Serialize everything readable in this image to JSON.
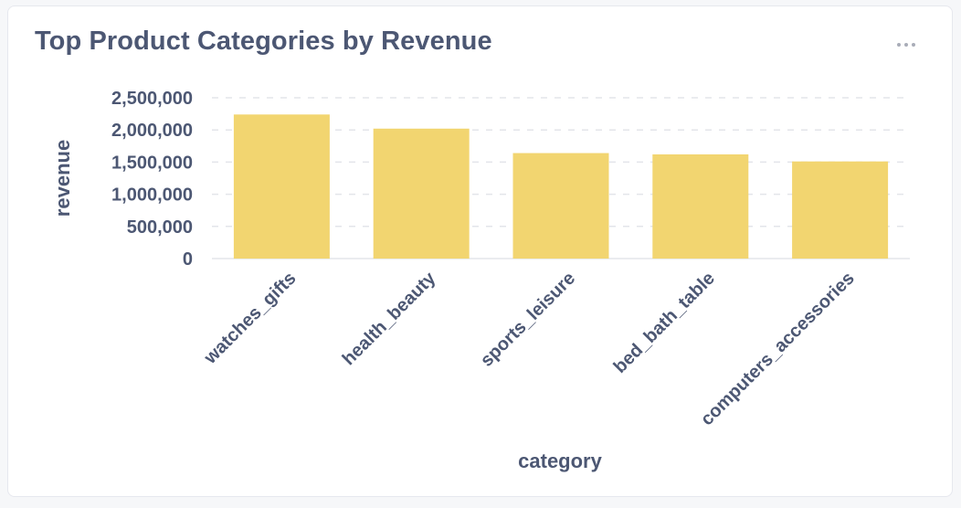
{
  "card": {
    "title": "Top Product Categories by Revenue",
    "menu_icon": "more-horizontal-icon"
  },
  "chart_data": {
    "type": "bar",
    "categories": [
      "watches_gifts",
      "health_beauty",
      "sports_leisure",
      "bed_bath_table",
      "computers_accessories"
    ],
    "values": [
      2240000,
      2020000,
      1640000,
      1620000,
      1510000
    ],
    "xlabel": "category",
    "ylabel": "revenue",
    "ylim": [
      0,
      2500000
    ],
    "yticks": [
      0,
      500000,
      1000000,
      1500000,
      2000000,
      2500000
    ],
    "ytick_labels": [
      "0",
      "500,000",
      "1,000,000",
      "1,500,000",
      "2,000,000",
      "2,500,000"
    ],
    "grid": "horizontal-dashed",
    "bar_color": "#f2d570",
    "text_color": "#4c5773",
    "grid_color": "#e3e5ea"
  }
}
